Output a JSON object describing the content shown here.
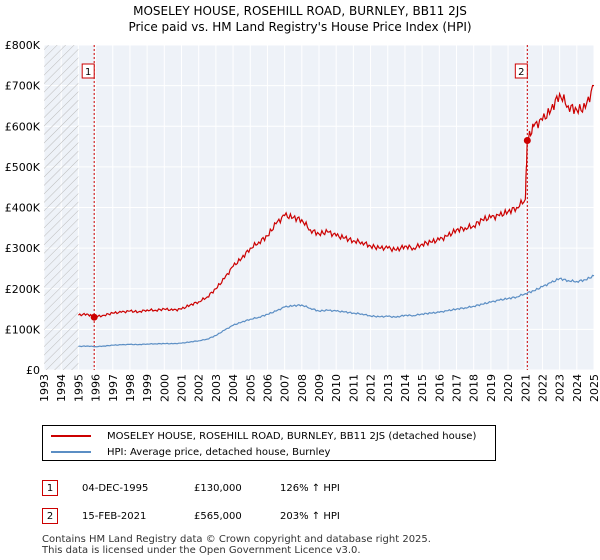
{
  "title_line1": "MOSELEY HOUSE, ROSEHILL ROAD, BURNLEY, BB11 2JS",
  "title_line2": "Price paid vs. HM Land Registry's House Price Index (HPI)",
  "chart_data": {
    "type": "line",
    "xlim": [
      1993,
      2025
    ],
    "ylim": [
      0,
      800000
    ],
    "y_ticks": [
      0,
      100000,
      200000,
      300000,
      400000,
      500000,
      600000,
      700000,
      800000
    ],
    "y_tick_labels": [
      "£0",
      "£100K",
      "£200K",
      "£300K",
      "£400K",
      "£500K",
      "£600K",
      "£700K",
      "£800K"
    ],
    "x_ticks": [
      1993,
      1994,
      1995,
      1996,
      1997,
      1998,
      1999,
      2000,
      2001,
      2002,
      2003,
      2004,
      2005,
      2006,
      2007,
      2008,
      2009,
      2010,
      2011,
      2012,
      2013,
      2014,
      2015,
      2016,
      2017,
      2018,
      2019,
      2020,
      2021,
      2022,
      2023,
      2024,
      2025
    ],
    "grid": true,
    "hatched_ranges": [
      [
        1993,
        1995
      ],
      [
        2025,
        2025.5
      ]
    ],
    "series": [
      {
        "name": "MOSELEY HOUSE, ROSEHILL ROAD, BURNLEY, BB11 2JS (detached house)",
        "color": "#cc0000",
        "x": [
          1995.0,
          1995.5,
          1995.92,
          1996.5,
          1997.0,
          1997.5,
          1998.0,
          1998.5,
          1999.0,
          1999.5,
          2000.0,
          2000.5,
          2001.0,
          2001.5,
          2002.0,
          2002.5,
          2003.0,
          2003.5,
          2004.0,
          2004.5,
          2005.0,
          2005.5,
          2006.0,
          2006.5,
          2007.0,
          2007.5,
          2008.0,
          2008.5,
          2009.0,
          2009.5,
          2010.0,
          2010.5,
          2011.0,
          2011.5,
          2012.0,
          2012.5,
          2013.0,
          2013.5,
          2014.0,
          2014.5,
          2015.0,
          2015.5,
          2016.0,
          2016.5,
          2017.0,
          2017.5,
          2018.0,
          2018.5,
          2019.0,
          2019.5,
          2020.0,
          2020.5,
          2021.0,
          2021.12,
          2021.5,
          2022.0,
          2022.5,
          2023.0,
          2023.5,
          2024.0,
          2024.5,
          2025.0
        ],
        "values": [
          135000,
          138000,
          130000,
          135000,
          140000,
          142000,
          145000,
          143000,
          148000,
          147000,
          150000,
          147000,
          150000,
          160000,
          168000,
          180000,
          200000,
          225000,
          255000,
          275000,
          300000,
          315000,
          330000,
          360000,
          380000,
          375000,
          370000,
          345000,
          335000,
          340000,
          330000,
          325000,
          318000,
          315000,
          305000,
          300000,
          300000,
          295000,
          305000,
          300000,
          310000,
          315000,
          320000,
          330000,
          345000,
          350000,
          355000,
          370000,
          375000,
          380000,
          390000,
          400000,
          420000,
          565000,
          600000,
          615000,
          640000,
          680000,
          650000,
          640000,
          645000,
          700000
        ]
      },
      {
        "name": "HPI: Average price, detached house, Burnley",
        "color": "#5b8ec4",
        "x": [
          1995.0,
          1995.5,
          1996.0,
          1996.5,
          1997.0,
          1997.5,
          1998.0,
          1998.5,
          1999.0,
          1999.5,
          2000.0,
          2000.5,
          2001.0,
          2001.5,
          2002.0,
          2002.5,
          2003.0,
          2003.5,
          2004.0,
          2004.5,
          2005.0,
          2005.5,
          2006.0,
          2006.5,
          2007.0,
          2007.5,
          2008.0,
          2008.5,
          2009.0,
          2009.5,
          2010.0,
          2010.5,
          2011.0,
          2011.5,
          2012.0,
          2012.5,
          2013.0,
          2013.5,
          2014.0,
          2014.5,
          2015.0,
          2015.5,
          2016.0,
          2016.5,
          2017.0,
          2017.5,
          2018.0,
          2018.5,
          2019.0,
          2019.5,
          2020.0,
          2020.5,
          2021.0,
          2021.5,
          2022.0,
          2022.5,
          2023.0,
          2023.5,
          2024.0,
          2024.5,
          2025.0
        ],
        "values": [
          58000,
          59000,
          57500,
          59000,
          61000,
          62000,
          63000,
          62500,
          64000,
          64500,
          65000,
          64500,
          66000,
          69000,
          72000,
          76000,
          85000,
          98000,
          110000,
          118000,
          125000,
          130000,
          137000,
          145000,
          155000,
          158000,
          160000,
          152000,
          145000,
          147000,
          145000,
          143000,
          140000,
          138000,
          133000,
          131000,
          132000,
          130000,
          135000,
          134000,
          138000,
          140000,
          142000,
          146000,
          150000,
          153000,
          157000,
          162000,
          167000,
          172000,
          176000,
          180000,
          188000,
          195000,
          205000,
          215000,
          225000,
          220000,
          218000,
          222000,
          232000
        ]
      }
    ],
    "annotations": [
      {
        "label": "1",
        "x": 1995.92,
        "value": 130000
      },
      {
        "label": "2",
        "x": 2021.12,
        "value": 565000
      }
    ]
  },
  "legend": {
    "items": [
      {
        "label": "MOSELEY HOUSE, ROSEHILL ROAD, BURNLEY, BB11 2JS (detached house)",
        "color": "#cc0000"
      },
      {
        "label": "HPI: Average price, detached house, Burnley",
        "color": "#5b8ec4"
      }
    ]
  },
  "sales": [
    {
      "num": "1",
      "date": "04-DEC-1995",
      "price": "£130,000",
      "hpi": "126% ↑ HPI"
    },
    {
      "num": "2",
      "date": "15-FEB-2021",
      "price": "£565,000",
      "hpi": "203% ↑ HPI"
    }
  ],
  "footer": {
    "line1": "Contains HM Land Registry data © Crown copyright and database right 2025.",
    "line2": "This data is licensed under the Open Government Licence v3.0."
  }
}
